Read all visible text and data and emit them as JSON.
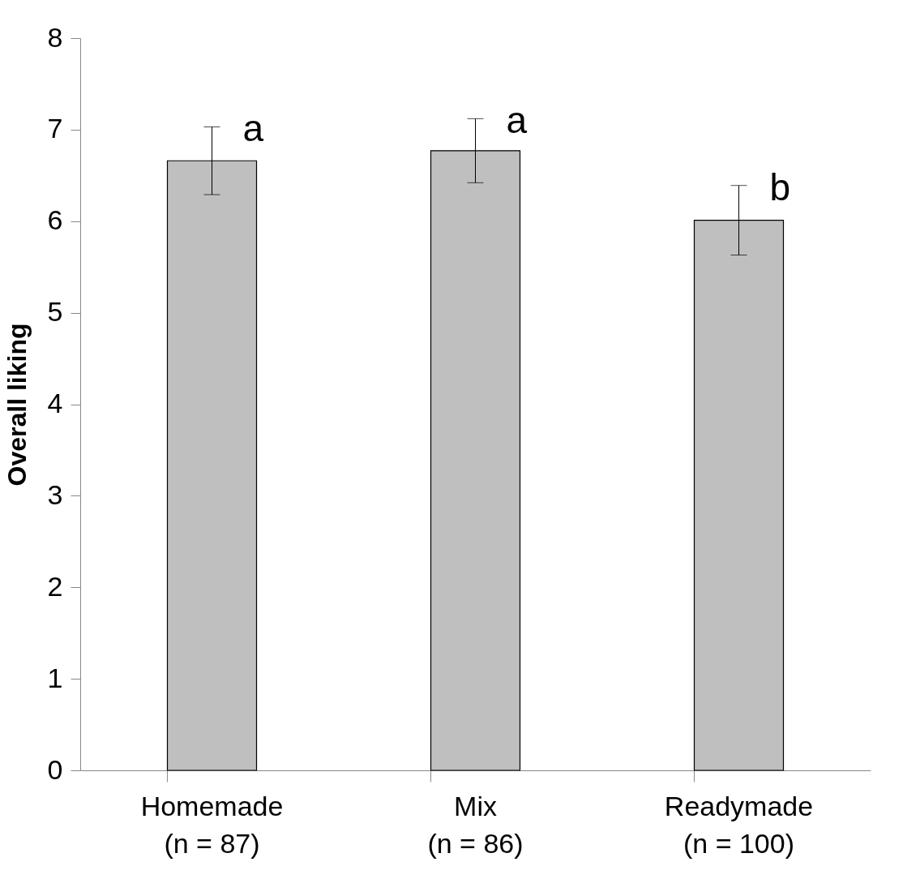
{
  "chart_data": {
    "type": "bar",
    "ylabel": "Overall liking",
    "categories": [
      "Homemade\n(n = 87)",
      "Mix\n(n = 86)",
      "Readymade\n(n = 100)"
    ],
    "values": [
      6.66,
      6.77,
      6.01
    ],
    "errors": [
      0.37,
      0.35,
      0.38
    ],
    "color": "#bfbfbf",
    "ylim": [
      0,
      8
    ],
    "yticks": [
      0,
      1,
      2,
      3,
      4,
      5,
      6,
      7,
      8
    ],
    "grid": false,
    "annotations": [
      {
        "text": "a",
        "x": "Homemade\n(n = 87)",
        "y": 7.03
      },
      {
        "text": "a",
        "x": "Mix\n(n = 86)",
        "y": 7.12
      },
      {
        "text": "b",
        "x": "Readymade\n(n = 100)",
        "y": 6.39
      }
    ]
  }
}
